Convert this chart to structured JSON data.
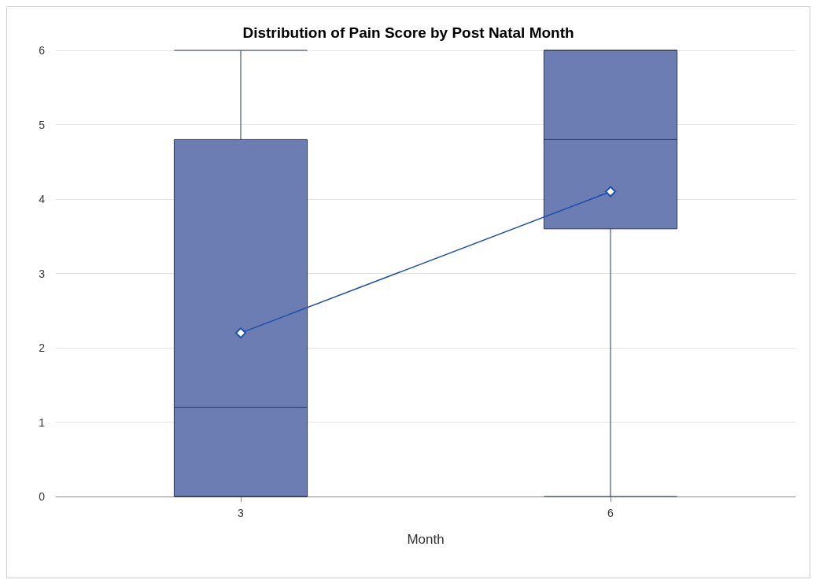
{
  "chart_data": {
    "type": "box",
    "title": "Distribution of Pain Score by Post Natal Month",
    "xlabel": "Month",
    "categories": [
      "3",
      "6"
    ],
    "ylim": [
      0,
      6
    ],
    "yticks": [
      0,
      1,
      2,
      3,
      4,
      5,
      6
    ],
    "grid": "y",
    "series": [
      {
        "color": "#6b7db3",
        "boxes": [
          {
            "low": 0,
            "q1": 0,
            "median": 1.2,
            "q3": 4.8,
            "high": 6
          },
          {
            "low": 0,
            "q1": 3.6,
            "median": 4.8,
            "q3": 6,
            "high": 6
          }
        ]
      },
      {
        "type": "line",
        "color": "#1f4ea8",
        "marker": "diamond",
        "x": [
          "3",
          "6"
        ],
        "values": [
          2.2,
          4.1
        ]
      }
    ]
  }
}
